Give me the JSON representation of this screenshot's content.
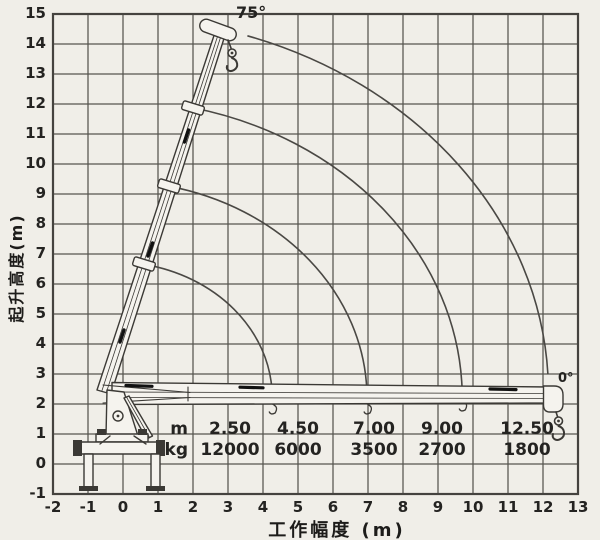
{
  "figure": {
    "x_axis": {
      "title": "工作幅度 (m)",
      "ticks": [
        -2,
        -1,
        0,
        1,
        2,
        3,
        4,
        5,
        6,
        7,
        8,
        9,
        10,
        11,
        12,
        13
      ]
    },
    "y_axis": {
      "title": "起升高度(m)",
      "ticks": [
        -1,
        0,
        1,
        2,
        3,
        4,
        5,
        6,
        7,
        8,
        9,
        10,
        11,
        12,
        13,
        14,
        15
      ]
    },
    "angle_max_label": "75°",
    "angle_min_label": "0°",
    "load_table": {
      "row1_label": "m",
      "row2_label": "kg",
      "radii": [
        "2.50",
        "4.50",
        "7.00",
        "9.00",
        "12.50"
      ],
      "capacities": [
        "12000",
        "6000",
        "3500",
        "2700",
        "1800"
      ]
    }
  },
  "chart_data": {
    "type": "line",
    "title": "Crane working range / load chart",
    "xlabel": "工作幅度 (m)",
    "ylabel": "起升高度(m)",
    "xlim": [
      -2,
      13
    ],
    "ylim": [
      -1,
      15
    ],
    "grid": "on",
    "boom_angle_range_deg": [
      0,
      75
    ],
    "boom_pivot": {
      "x": -0.5,
      "y": 2.5
    },
    "load_table": {
      "radius_m": [
        2.5,
        4.5,
        7.0,
        9.0,
        12.5
      ],
      "capacity_kg": [
        12000,
        6000,
        3500,
        2700,
        1800
      ]
    },
    "trajectory_arcs": [
      {
        "boom_length_m": 4.3,
        "r_end": 4.76,
        "start_angle_deg": 75,
        "end_height_m": 2.4
      },
      {
        "boom_length_m": 7.0,
        "r_end": 7.47,
        "start_angle_deg": 75,
        "end_height_m": 2.4
      },
      {
        "boom_length_m": 9.7,
        "r_end": 10.19,
        "start_angle_deg": 75,
        "end_height_m": 2.5
      },
      {
        "boom_length_m": 12.45,
        "r_end": 12.64,
        "start_angle_deg": 71,
        "end_height_m": 3.0
      }
    ]
  },
  "colors": {
    "paper": "#f0eee8",
    "grid": "#56544f",
    "ink": "#2f2d2a",
    "drawing": "#3b3935"
  }
}
